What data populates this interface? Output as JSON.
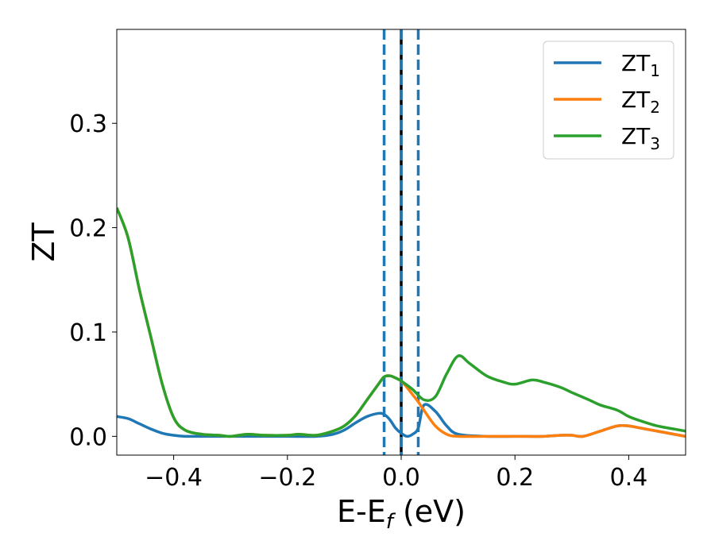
{
  "chart_data": {
    "type": "line",
    "title": "",
    "xlabel": "E-E_f (eV)",
    "xlabel_parts": {
      "main": "E-E",
      "sub": "f",
      "unit": " (eV)"
    },
    "ylabel": "ZT",
    "xlim": [
      -0.5,
      0.5
    ],
    "ylim": [
      -0.018,
      0.39
    ],
    "xticks": [
      -0.4,
      -0.2,
      0.0,
      0.2,
      0.4
    ],
    "xtick_labels": [
      "−0.4",
      "−0.2",
      "0.0",
      "0.2",
      "0.4"
    ],
    "yticks": [
      0.0,
      0.1,
      0.2,
      0.3
    ],
    "ytick_labels": [
      "0.0",
      "0.1",
      "0.2",
      "0.3"
    ],
    "grid": false,
    "legend_position": "top-right",
    "vlines": [
      {
        "x": -0.03,
        "style": "dashed",
        "color": "#1f77b4"
      },
      {
        "x": 0.0,
        "style": "solid",
        "color": "#000000"
      },
      {
        "x": 0.0,
        "style": "dashed",
        "color": "#1f77b4"
      },
      {
        "x": 0.03,
        "style": "dashed",
        "color": "#1f77b4"
      }
    ],
    "series": [
      {
        "name": "ZT_1",
        "label_main": "ZT",
        "label_sub": "1",
        "color": "#1f77b4",
        "x": [
          -0.5,
          -0.48,
          -0.46,
          -0.44,
          -0.42,
          -0.4,
          -0.38,
          -0.35,
          -0.3,
          -0.25,
          -0.2,
          -0.15,
          -0.12,
          -0.1,
          -0.08,
          -0.06,
          -0.04,
          -0.03,
          -0.02,
          -0.01,
          0.0,
          0.01,
          0.02,
          0.03,
          0.04,
          0.06,
          0.08,
          0.1,
          0.15,
          0.2,
          0.25,
          0.28,
          0.3,
          0.32,
          0.35,
          0.38,
          0.4,
          0.42,
          0.45,
          0.48,
          0.5
        ],
        "y": [
          0.019,
          0.017,
          0.012,
          0.007,
          0.003,
          0.001,
          0.0,
          0.0,
          0.0,
          0.0,
          0.0,
          0.0,
          0.002,
          0.006,
          0.013,
          0.019,
          0.022,
          0.021,
          0.016,
          0.008,
          0.003,
          0.0,
          0.002,
          0.008,
          0.03,
          0.024,
          0.01,
          0.002,
          0.0,
          0.0,
          0.0,
          0.001,
          0.001,
          0.0,
          0.005,
          0.01,
          0.01,
          0.008,
          0.005,
          0.002,
          0.0
        ]
      },
      {
        "name": "ZT_2",
        "label_main": "ZT",
        "label_sub": "2",
        "color": "#ff7f0e",
        "x": [
          -0.5,
          -0.48,
          -0.46,
          -0.44,
          -0.42,
          -0.4,
          -0.38,
          -0.35,
          -0.32,
          -0.3,
          -0.27,
          -0.24,
          -0.2,
          -0.18,
          -0.15,
          -0.12,
          -0.1,
          -0.08,
          -0.06,
          -0.04,
          -0.03,
          -0.02,
          -0.01,
          0.0,
          0.01,
          0.02,
          0.03,
          0.04,
          0.06,
          0.08,
          0.1,
          0.15,
          0.2,
          0.25,
          0.28,
          0.3,
          0.32,
          0.35,
          0.38,
          0.4,
          0.42,
          0.45,
          0.48,
          0.5
        ],
        "y": [
          0.219,
          0.19,
          0.14,
          0.095,
          0.05,
          0.018,
          0.006,
          0.002,
          0.001,
          0.0,
          0.002,
          0.001,
          0.001,
          0.002,
          0.001,
          0.005,
          0.01,
          0.02,
          0.035,
          0.05,
          0.057,
          0.058,
          0.056,
          0.053,
          0.047,
          0.04,
          0.033,
          0.025,
          0.01,
          0.002,
          0.0,
          0.0,
          0.0,
          0.0,
          0.001,
          0.001,
          0.0,
          0.005,
          0.01,
          0.01,
          0.008,
          0.005,
          0.002,
          0.0
        ]
      },
      {
        "name": "ZT_3",
        "label_main": "ZT",
        "label_sub": "3",
        "color": "#2ca02c",
        "x": [
          -0.5,
          -0.48,
          -0.46,
          -0.44,
          -0.42,
          -0.4,
          -0.38,
          -0.35,
          -0.32,
          -0.3,
          -0.27,
          -0.24,
          -0.2,
          -0.18,
          -0.15,
          -0.12,
          -0.1,
          -0.08,
          -0.06,
          -0.04,
          -0.03,
          -0.02,
          -0.01,
          0.0,
          0.02,
          0.04,
          0.06,
          0.08,
          0.1,
          0.12,
          0.15,
          0.18,
          0.2,
          0.23,
          0.25,
          0.28,
          0.3,
          0.33,
          0.35,
          0.38,
          0.4,
          0.42,
          0.45,
          0.48,
          0.5
        ],
        "y": [
          0.219,
          0.19,
          0.14,
          0.095,
          0.05,
          0.018,
          0.006,
          0.002,
          0.001,
          0.0,
          0.002,
          0.001,
          0.001,
          0.002,
          0.001,
          0.005,
          0.01,
          0.02,
          0.035,
          0.05,
          0.057,
          0.058,
          0.056,
          0.053,
          0.045,
          0.035,
          0.038,
          0.06,
          0.077,
          0.07,
          0.058,
          0.052,
          0.05,
          0.054,
          0.052,
          0.047,
          0.042,
          0.035,
          0.03,
          0.025,
          0.019,
          0.015,
          0.01,
          0.007,
          0.005
        ]
      }
    ]
  }
}
